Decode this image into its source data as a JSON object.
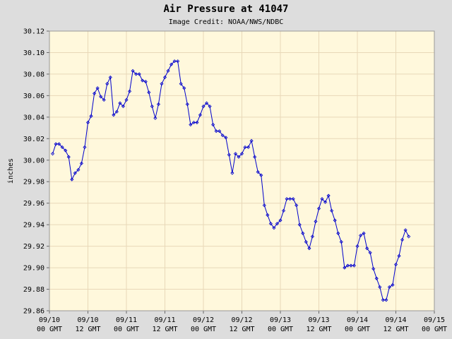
{
  "chart_data": {
    "type": "line",
    "title": "Air Pressure at 41047",
    "subtitle": "Image Credit: NOAA/NWS/NDBC",
    "y_label": "inches",
    "color": "#0000cc",
    "grid": true,
    "xlim": [
      0,
      120
    ],
    "xticks": [
      {
        "value": 0,
        "label": [
          "09/10",
          "00 GMT"
        ]
      },
      {
        "value": 12,
        "label": [
          "09/10",
          "12 GMT"
        ]
      },
      {
        "value": 24,
        "label": [
          "09/11",
          "00 GMT"
        ]
      },
      {
        "value": 36,
        "label": [
          "09/11",
          "12 GMT"
        ]
      },
      {
        "value": 48,
        "label": [
          "09/12",
          "00 GMT"
        ]
      },
      {
        "value": 60,
        "label": [
          "09/12",
          "12 GMT"
        ]
      },
      {
        "value": 72,
        "label": [
          "09/13",
          "00 GMT"
        ]
      },
      {
        "value": 84,
        "label": [
          "09/13",
          "12 GMT"
        ]
      },
      {
        "value": 96,
        "label": [
          "09/14",
          "00 GMT"
        ]
      },
      {
        "value": 108,
        "label": [
          "09/14",
          "12 GMT"
        ]
      },
      {
        "value": 120,
        "label": [
          "09/15",
          "00 GMT"
        ]
      }
    ],
    "ylim": [
      29.86,
      30.12
    ],
    "yticks": [
      29.86,
      29.88,
      {
        "value": 29.9,
        "label": "29.90"
      },
      29.92,
      29.94,
      29.96,
      29.98,
      {
        "value": 30.0,
        "label": "30.00"
      },
      30.02,
      30.04,
      30.06,
      30.08,
      {
        "value": 30.1,
        "label": "30.10"
      },
      30.12
    ],
    "x": [
      1,
      2,
      3,
      4,
      5,
      6,
      7,
      8,
      9,
      10,
      11,
      12,
      13,
      14,
      15,
      16,
      17,
      18,
      19,
      20,
      21,
      22,
      23,
      24,
      25,
      26,
      27,
      28,
      29,
      30,
      31,
      32,
      33,
      34,
      35,
      36,
      37,
      38,
      39,
      40,
      41,
      42,
      43,
      44,
      45,
      46,
      47,
      48,
      49,
      50,
      51,
      52,
      53,
      54,
      55,
      56,
      57,
      58,
      59,
      60,
      61,
      62,
      63,
      64,
      65,
      66,
      67,
      68,
      69,
      70,
      71,
      72,
      73,
      74,
      75,
      76,
      77,
      78,
      79,
      80,
      81,
      82,
      83,
      84,
      85,
      86,
      87,
      88,
      89,
      90,
      91,
      92,
      93,
      94,
      95,
      96,
      97,
      98,
      99,
      100,
      101,
      102,
      103,
      104,
      105,
      106,
      107,
      108,
      109,
      110,
      111,
      112
    ],
    "values": [
      30.006,
      30.015,
      30.015,
      30.012,
      30.009,
      30.003,
      29.982,
      29.988,
      29.991,
      29.997,
      30.012,
      30.035,
      30.041,
      30.062,
      30.067,
      30.059,
      30.056,
      30.071,
      30.077,
      30.042,
      30.045,
      30.053,
      30.05,
      30.056,
      30.064,
      30.083,
      30.08,
      30.08,
      30.074,
      30.073,
      30.063,
      30.05,
      30.039,
      30.052,
      30.071,
      30.077,
      30.083,
      30.089,
      30.092,
      30.092,
      30.071,
      30.067,
      30.052,
      30.033,
      30.035,
      30.035,
      30.042,
      30.05,
      30.053,
      30.05,
      30.033,
      30.027,
      30.027,
      30.023,
      30.021,
      30.005,
      29.988,
      30.006,
      30.003,
      30.006,
      30.012,
      30.012,
      30.018,
      30.003,
      29.989,
      29.986,
      29.958,
      29.949,
      29.941,
      29.937,
      29.941,
      29.944,
      29.953,
      29.964,
      29.964,
      29.964,
      29.958,
      29.94,
      29.932,
      29.924,
      29.918,
      29.929,
      29.943,
      29.955,
      29.964,
      29.961,
      29.967,
      29.953,
      29.944,
      29.932,
      29.924,
      29.9,
      29.902,
      29.902,
      29.902,
      29.92,
      29.93,
      29.932,
      29.918,
      29.914,
      29.899,
      29.89,
      29.882,
      29.87,
      29.87,
      29.882,
      29.884,
      29.903,
      29.911,
      29.926,
      29.935,
      29.929
    ]
  }
}
